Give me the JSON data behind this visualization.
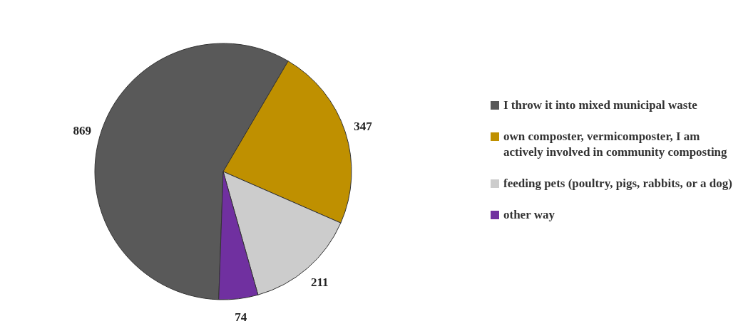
{
  "chart_data": {
    "type": "pie",
    "categories": [
      "I throw it into mixed municipal waste",
      "own composter, vermicomposter, I am actively involved in community composting",
      "feeding pets (poultry, pigs, rabbits, or a dog)",
      "other way"
    ],
    "values": [
      869,
      347,
      211,
      74
    ],
    "colors": [
      "#595959",
      "#bf9000",
      "#cccccc",
      "#7030a0"
    ],
    "data_labels": true,
    "legend": "right"
  }
}
